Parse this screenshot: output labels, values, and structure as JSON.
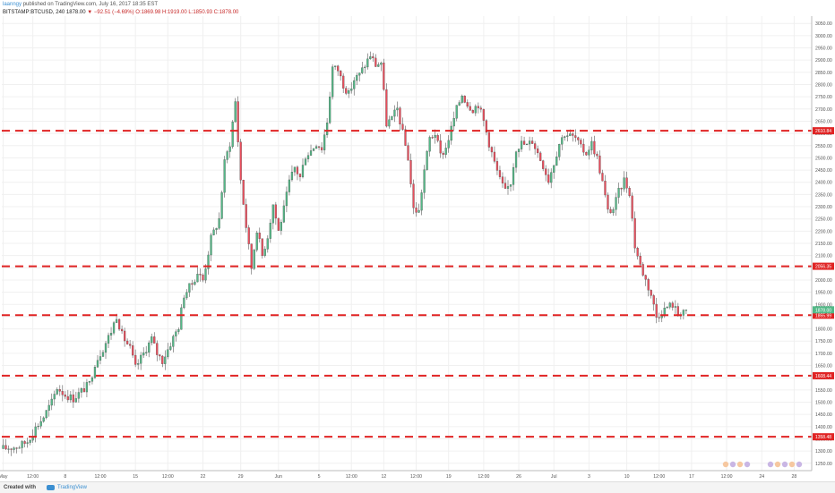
{
  "header": {
    "author": "laanngy",
    "published_text": "published on TradingView.com, July 16, 2017 18:35 EST",
    "symbol": "BITSTAMP:BTCUSD, 240",
    "last": "1878.00",
    "change": "▼ −92.51 (−4.69%)",
    "ohlc": "O:1869.98 H:1919.00 L:1850.93 C:1878.00"
  },
  "footer": {
    "created_label": "Created with",
    "brand": "TradingView"
  },
  "colors": {
    "level_line": "#e02424",
    "up_candle": "#53b987",
    "down_candle": "#eb4d5c",
    "last_price_bg": "#53b987",
    "level_label_bg": "#e02424",
    "grid": "#f0f0f0"
  },
  "chart_data": {
    "type": "candlestick",
    "symbol": "BITSTAMP:BTCUSD",
    "interval": "240",
    "ylim": [
      1220,
      3080
    ],
    "y_ticks": [
      3050,
      3000,
      2950,
      2900,
      2850,
      2800,
      2750,
      2700,
      2650,
      2600,
      2550,
      2500,
      2450,
      2400,
      2350,
      2300,
      2250,
      2200,
      2150,
      2100,
      2050,
      2000,
      1950,
      1900,
      1850,
      1800,
      1750,
      1700,
      1650,
      1600,
      1550,
      1500,
      1450,
      1400,
      1350,
      1300,
      1250
    ],
    "y_tick_labels": [
      "3050.00",
      "3000.00",
      "2950.00",
      "2900.00",
      "2850.00",
      "2800.00",
      "2750.00",
      "2700.00",
      "2650.00",
      "2600.00",
      "2550.00",
      "2500.00",
      "2450.00",
      "2400.00",
      "2350.00",
      "2300.00",
      "2250.00",
      "2200.00",
      "2150.00",
      "2100.00",
      "2050.00",
      "2000.00",
      "1950.00",
      "1900.00",
      "1850.00",
      "1800.00",
      "1750.00",
      "1700.00",
      "1650.00",
      "1600.00",
      "1550.00",
      "1500.00",
      "1450.00",
      "1400.00",
      "1350.00",
      "1300.00",
      "1250.00"
    ],
    "x_tick_labels": [
      "May",
      "12:00",
      "8",
      "12:00",
      "15",
      "12:00",
      "22",
      "29",
      "Jun",
      "5",
      "12:00",
      "12",
      "12:00",
      "19",
      "12:00",
      "26",
      "Jul",
      "3",
      "10",
      "12:00",
      "17",
      "12:00",
      "24",
      "28"
    ],
    "x_tick_index": [
      0,
      11,
      23,
      36,
      49,
      61,
      74,
      88,
      102,
      117,
      129,
      141,
      153,
      165,
      178,
      191,
      204,
      217,
      231,
      243,
      255,
      268,
      281,
      293
    ],
    "total_bars": 300,
    "last_bar_index": 253,
    "horizontal_levels": [
      {
        "value": 2610.84,
        "label": "2610.84"
      },
      {
        "value": 2056.35,
        "label": "2056.35"
      },
      {
        "value": 1855.99,
        "label": "1855.99"
      },
      {
        "value": 1608.44,
        "label": "1608.44"
      },
      {
        "value": 1358.48,
        "label": "1358.48"
      }
    ],
    "last_price": {
      "value": 1878.0,
      "label": "1878.00"
    },
    "price_path": [
      [
        0,
        1310
      ],
      [
        6,
        1320
      ],
      [
        9,
        1340
      ],
      [
        12,
        1395
      ],
      [
        15,
        1440
      ],
      [
        18,
        1500
      ],
      [
        20,
        1560
      ],
      [
        23,
        1530
      ],
      [
        26,
        1515
      ],
      [
        29,
        1545
      ],
      [
        32,
        1575
      ],
      [
        34,
        1660
      ],
      [
        37,
        1720
      ],
      [
        40,
        1790
      ],
      [
        42,
        1855
      ],
      [
        44,
        1775
      ],
      [
        47,
        1720
      ],
      [
        49,
        1640
      ],
      [
        52,
        1700
      ],
      [
        55,
        1760
      ],
      [
        57,
        1700
      ],
      [
        59,
        1670
      ],
      [
        62,
        1740
      ],
      [
        65,
        1810
      ],
      [
        67,
        1940
      ],
      [
        70,
        1985
      ],
      [
        72,
        2030
      ],
      [
        74,
        2000
      ],
      [
        77,
        2170
      ],
      [
        80,
        2250
      ],
      [
        82,
        2480
      ],
      [
        84,
        2560
      ],
      [
        86,
        2730
      ],
      [
        88,
        2410
      ],
      [
        90,
        2220
      ],
      [
        92,
        2050
      ],
      [
        94,
        2210
      ],
      [
        96,
        2100
      ],
      [
        98,
        2180
      ],
      [
        100,
        2310
      ],
      [
        102,
        2200
      ],
      [
        104,
        2290
      ],
      [
        106,
        2400
      ],
      [
        108,
        2460
      ],
      [
        110,
        2420
      ],
      [
        112,
        2510
      ],
      [
        114,
        2530
      ],
      [
        116,
        2560
      ],
      [
        118,
        2540
      ],
      [
        120,
        2650
      ],
      [
        122,
        2870
      ],
      [
        124,
        2860
      ],
      [
        126,
        2800
      ],
      [
        128,
        2760
      ],
      [
        130,
        2820
      ],
      [
        132,
        2840
      ],
      [
        134,
        2880
      ],
      [
        136,
        2920
      ],
      [
        138,
        2880
      ],
      [
        140,
        2890
      ],
      [
        142,
        2640
      ],
      [
        144,
        2660
      ],
      [
        146,
        2700
      ],
      [
        148,
        2600
      ],
      [
        150,
        2500
      ],
      [
        152,
        2290
      ],
      [
        154,
        2280
      ],
      [
        156,
        2450
      ],
      [
        158,
        2580
      ],
      [
        160,
        2600
      ],
      [
        162,
        2510
      ],
      [
        164,
        2540
      ],
      [
        166,
        2620
      ],
      [
        168,
        2700
      ],
      [
        170,
        2760
      ],
      [
        172,
        2720
      ],
      [
        174,
        2700
      ],
      [
        176,
        2720
      ],
      [
        178,
        2650
      ],
      [
        180,
        2560
      ],
      [
        182,
        2480
      ],
      [
        184,
        2410
      ],
      [
        186,
        2360
      ],
      [
        188,
        2400
      ],
      [
        190,
        2540
      ],
      [
        192,
        2560
      ],
      [
        194,
        2550
      ],
      [
        196,
        2570
      ],
      [
        198,
        2520
      ],
      [
        200,
        2470
      ],
      [
        202,
        2410
      ],
      [
        204,
        2480
      ],
      [
        206,
        2560
      ],
      [
        208,
        2600
      ],
      [
        210,
        2590
      ],
      [
        212,
        2580
      ],
      [
        214,
        2540
      ],
      [
        216,
        2520
      ],
      [
        218,
        2560
      ],
      [
        220,
        2500
      ],
      [
        222,
        2400
      ],
      [
        224,
        2280
      ],
      [
        226,
        2290
      ],
      [
        228,
        2360
      ],
      [
        230,
        2410
      ],
      [
        232,
        2360
      ],
      [
        234,
        2140
      ],
      [
        236,
        2060
      ],
      [
        238,
        2000
      ],
      [
        240,
        1940
      ],
      [
        242,
        1850
      ],
      [
        244,
        1870
      ],
      [
        246,
        1890
      ],
      [
        248,
        1900
      ],
      [
        250,
        1860
      ],
      [
        252,
        1878
      ]
    ]
  }
}
